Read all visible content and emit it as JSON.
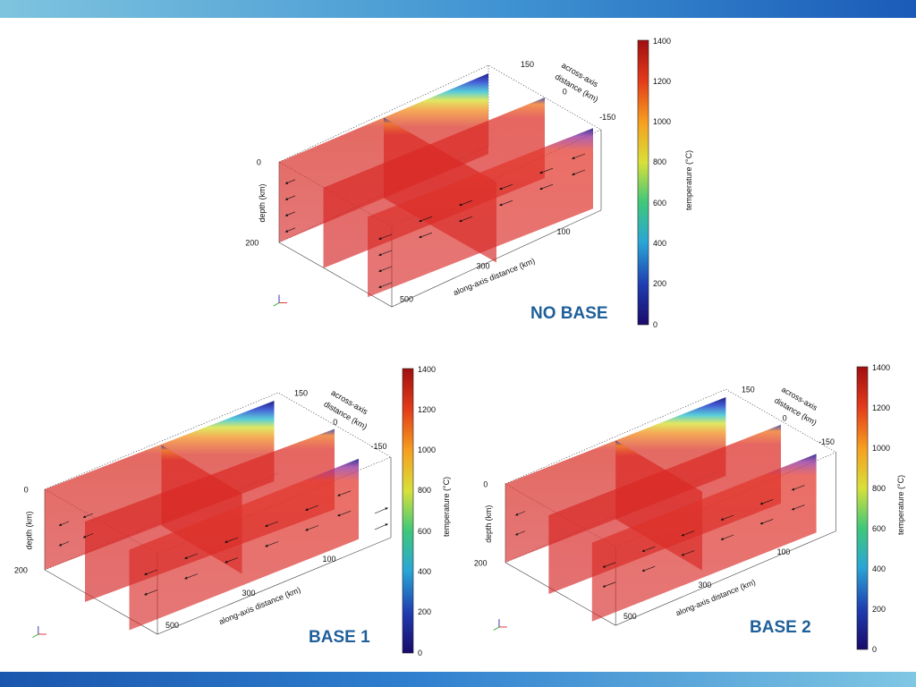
{
  "colors": {
    "header_band": "#3f93d2",
    "footer_band": "#2f7fcf",
    "title": "#1f5f9a",
    "slice_red": "#d42424",
    "cold_blue": "#1d1d8a"
  },
  "colormap": {
    "label": "temperature (°C)",
    "ticks": [
      "1400",
      "1200",
      "1000",
      "800",
      "600",
      "400",
      "200",
      "0"
    ],
    "range": [
      0,
      1400
    ],
    "stops": [
      "#1a0a6a",
      "#1f3cb0",
      "#2aa6d6",
      "#3fc87a",
      "#d8e03a",
      "#f6a020",
      "#e23a1a",
      "#a01010"
    ]
  },
  "panels": [
    {
      "id": "no-base",
      "title": "NO BASE",
      "axes": {
        "depth_label": "depth (km)",
        "depth_ticks": [
          "0",
          "200"
        ],
        "along_label": "along-axis distance (km)",
        "along_ticks": [
          "500",
          "300",
          "100"
        ],
        "across_label_1": "across-axis",
        "across_label_2": "distance (km)",
        "across_ticks": [
          "150",
          "0",
          "-150"
        ]
      }
    },
    {
      "id": "base-1",
      "title": "BASE 1",
      "axes": {
        "depth_label": "depth (km)",
        "depth_ticks": [
          "0",
          "200"
        ],
        "along_label": "along-axis distance (km)",
        "along_ticks": [
          "500",
          "300",
          "100"
        ],
        "across_label_1": "across-axis",
        "across_label_2": "distance (km)",
        "across_ticks": [
          "150",
          "0",
          "-150"
        ]
      }
    },
    {
      "id": "base-2",
      "title": "BASE 2",
      "axes": {
        "depth_label": "depth (km)",
        "depth_ticks": [
          "0",
          "200"
        ],
        "along_label": "along-axis distance (km)",
        "along_ticks": [
          "500",
          "300",
          "100"
        ],
        "across_label_1": "across-axis",
        "across_label_2": "distance (km)",
        "across_ticks": [
          "150",
          "0",
          "-150"
        ]
      }
    }
  ]
}
